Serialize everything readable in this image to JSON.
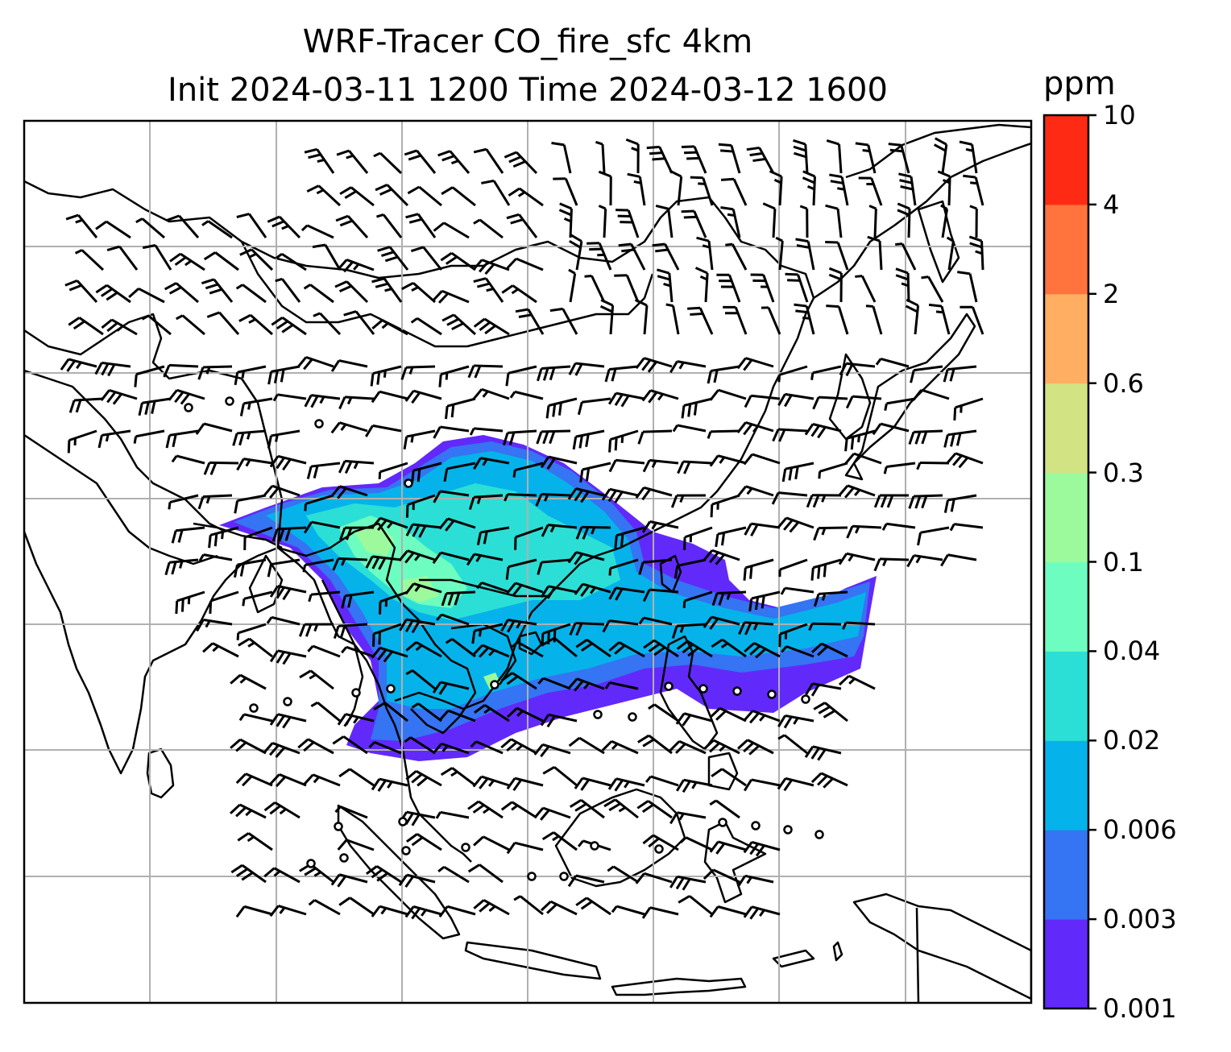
{
  "title": {
    "line1": "WRF-Tracer CO_fire_sfc 4km",
    "line2": "Init 2024-03-11 1200 Time 2024-03-12 1600"
  },
  "colorbar": {
    "unit": "ppm",
    "levels": [
      "0.001",
      "0.003",
      "0.006",
      "0.02",
      "0.04",
      "0.1",
      "0.3",
      "0.6",
      "2",
      "4",
      "10"
    ],
    "colors": [
      "#6229fb",
      "#3574f2",
      "#05b3ea",
      "#2cdfd6",
      "#6dfdc0",
      "#9cfa9c",
      "#d1e383",
      "#ffae62",
      "#ff733d",
      "#ff2a14"
    ]
  },
  "map": {
    "gridlines": true,
    "features": [
      "coastlines",
      "country-borders",
      "wind-barbs",
      "co-fire-plume"
    ]
  }
}
